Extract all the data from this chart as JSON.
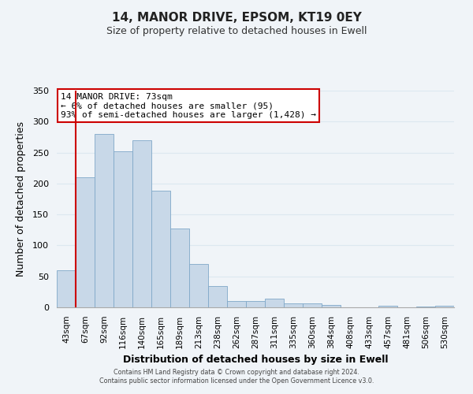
{
  "title": "14, MANOR DRIVE, EPSOM, KT19 0EY",
  "subtitle": "Size of property relative to detached houses in Ewell",
  "xlabel": "Distribution of detached houses by size in Ewell",
  "ylabel": "Number of detached properties",
  "bar_labels": [
    "43sqm",
    "67sqm",
    "92sqm",
    "116sqm",
    "140sqm",
    "165sqm",
    "189sqm",
    "213sqm",
    "238sqm",
    "262sqm",
    "287sqm",
    "311sqm",
    "335sqm",
    "360sqm",
    "384sqm",
    "408sqm",
    "433sqm",
    "457sqm",
    "481sqm",
    "506sqm",
    "530sqm"
  ],
  "bar_values": [
    60,
    210,
    280,
    252,
    270,
    188,
    127,
    70,
    35,
    10,
    10,
    14,
    7,
    6,
    4,
    0,
    0,
    3,
    0,
    1,
    3
  ],
  "bar_color": "#c8d8e8",
  "bar_edgecolor": "#7fa8c8",
  "vline_x": 1,
  "vline_color": "#cc0000",
  "ylim": [
    0,
    350
  ],
  "yticks": [
    0,
    50,
    100,
    150,
    200,
    250,
    300,
    350
  ],
  "annotation_title": "14 MANOR DRIVE: 73sqm",
  "annotation_line1": "← 6% of detached houses are smaller (95)",
  "annotation_line2": "93% of semi-detached houses are larger (1,428) →",
  "annotation_box_color": "#ffffff",
  "annotation_box_edgecolor": "#cc0000",
  "footer_line1": "Contains HM Land Registry data © Crown copyright and database right 2024.",
  "footer_line2": "Contains public sector information licensed under the Open Government Licence v3.0.",
  "background_color": "#f0f4f8",
  "grid_color": "#dde8f0",
  "plot_bg_color": "#f0f4f8"
}
